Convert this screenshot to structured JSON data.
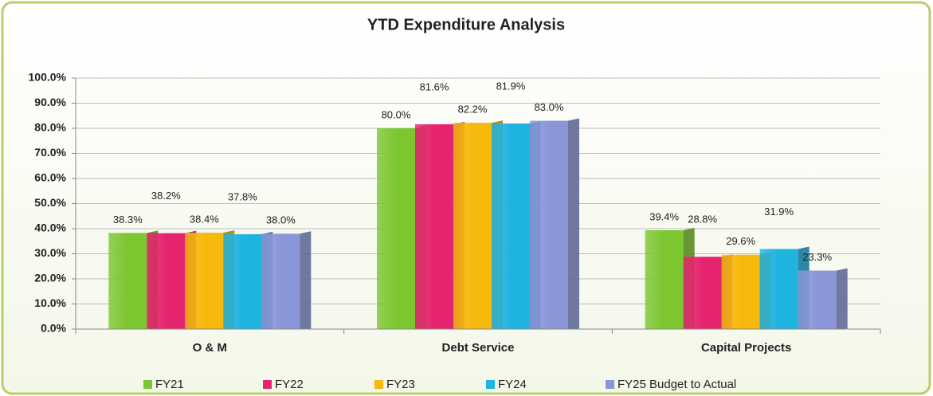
{
  "chart_data": {
    "type": "bar",
    "title": "YTD Expenditure Analysis",
    "categories": [
      "O & M",
      "Debt Service",
      "Capital Projects"
    ],
    "series": [
      {
        "name": "FY21",
        "color": "#7cc62f",
        "values": [
          38.3,
          80.0,
          39.4
        ],
        "value_labels": [
          "38.3%",
          "80.0%",
          "39.4%"
        ]
      },
      {
        "name": "FY22",
        "color": "#e6236e",
        "values": [
          38.2,
          81.6,
          28.8
        ],
        "value_labels": [
          "38.2%",
          "81.6%",
          "28.8%"
        ]
      },
      {
        "name": "FY23",
        "color": "#f6b90e",
        "values": [
          38.4,
          82.2,
          29.6
        ],
        "value_labels": [
          "38.4%",
          "82.2%",
          "29.6%"
        ]
      },
      {
        "name": "FY24",
        "color": "#1fb3e0",
        "values": [
          37.8,
          81.9,
          31.9
        ],
        "value_labels": [
          "37.8%",
          "81.9%",
          "31.9%"
        ]
      },
      {
        "name": "FY25 Budget to Actual",
        "color": "#8b96d8",
        "values": [
          38.0,
          83.0,
          23.3
        ],
        "value_labels": [
          "38.0%",
          "83.0%",
          "23.3%"
        ]
      }
    ],
    "ylim": [
      0,
      100
    ],
    "yticks": [
      {
        "value": 0,
        "label": "0.0%"
      },
      {
        "value": 10,
        "label": "10.0%"
      },
      {
        "value": 20,
        "label": "20.0%"
      },
      {
        "value": 30,
        "label": "30.0%"
      },
      {
        "value": 40,
        "label": "40.0%"
      },
      {
        "value": 50,
        "label": "50.0%"
      },
      {
        "value": 60,
        "label": "60.0%"
      },
      {
        "value": 70,
        "label": "70.0%"
      },
      {
        "value": 80,
        "label": "80.0%"
      },
      {
        "value": 90,
        "label": "90.0%"
      },
      {
        "value": 100,
        "label": "100.0%"
      }
    ],
    "grid": true,
    "legend": "bottom"
  }
}
